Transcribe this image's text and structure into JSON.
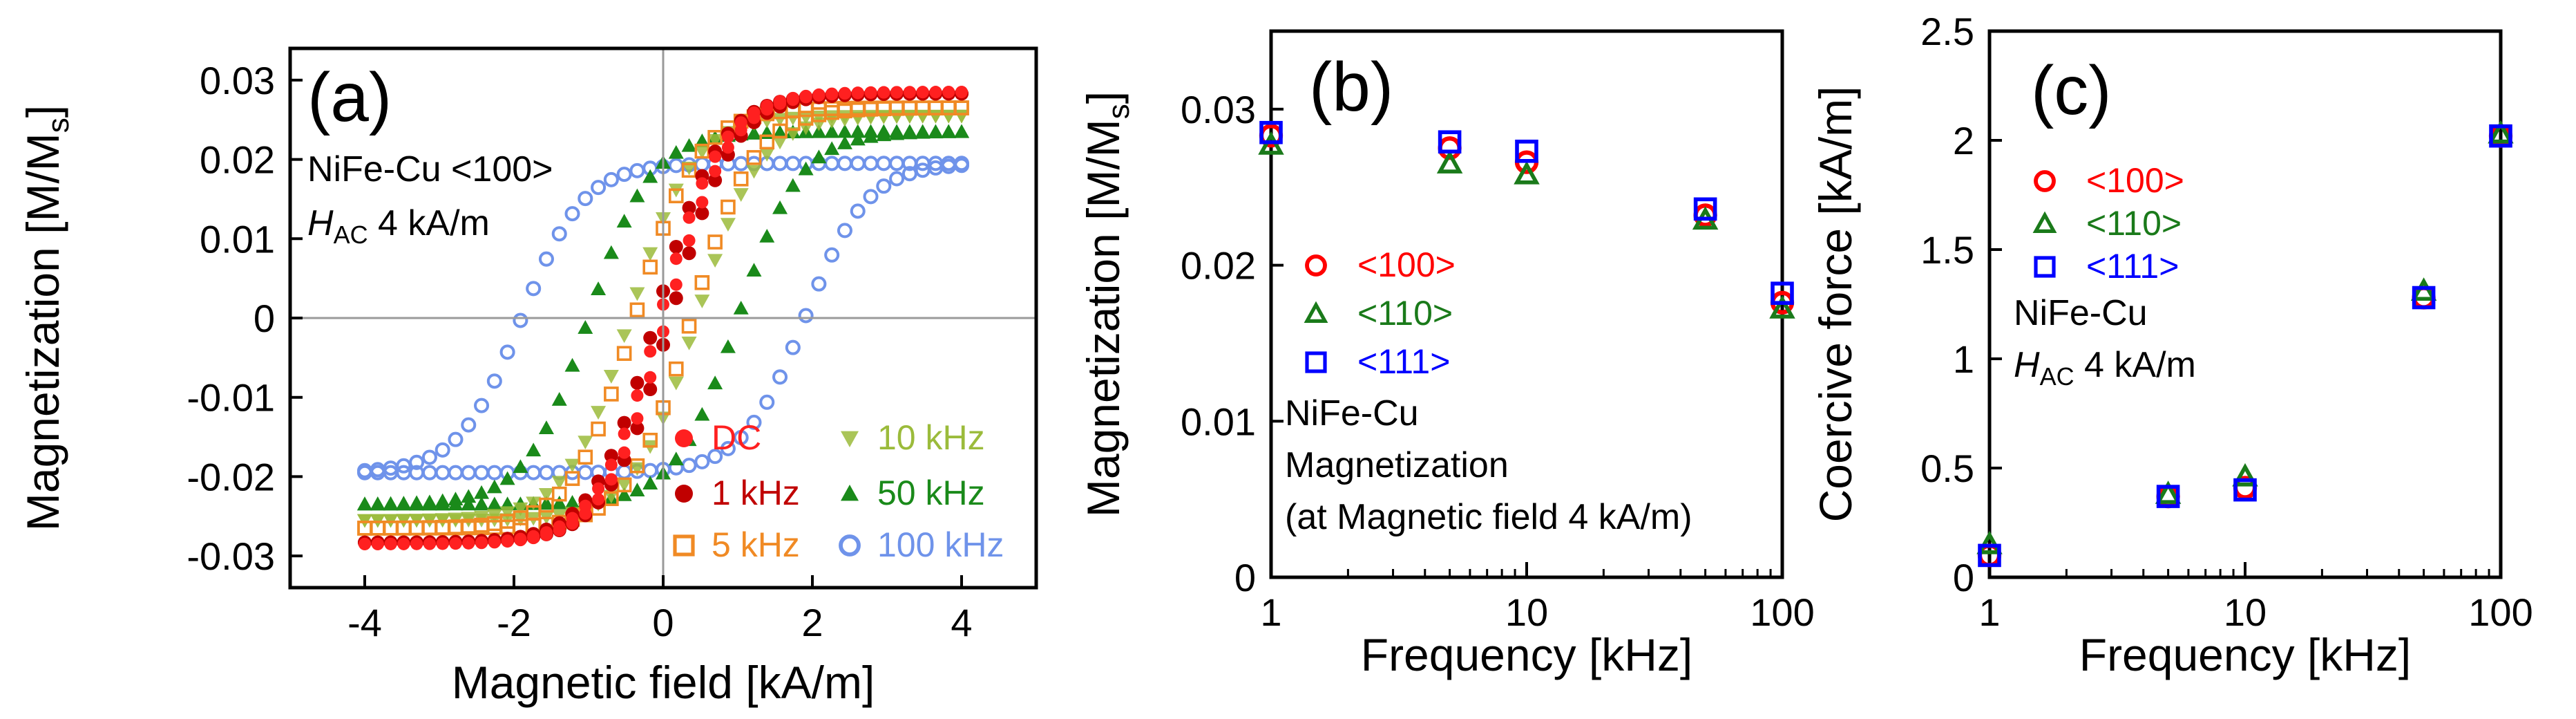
{
  "colors": {
    "dc": "#ff2020",
    "khz1": "#c00000",
    "khz5": "#f08a24",
    "khz10": "#9bbb3b",
    "khz50": "#1a8a1a",
    "khz100": "#6f93ea",
    "d100": "#ff0000",
    "d110": "#1a7a1a",
    "d111": "#0000ff",
    "refline": "#9a9a9a"
  },
  "chart_data": [
    {
      "id": "a",
      "type": "scatter",
      "panel_label": "(a)",
      "xlabel": "Magnetic field [kA/m]",
      "ylabel_main": "Magnetization [M/M",
      "ylabel_sub": "s",
      "ylabel_close": "]",
      "xlim": [
        -5,
        5
      ],
      "ylim": [
        -0.034,
        0.034
      ],
      "xticks": [
        -4,
        -2,
        0,
        2,
        4
      ],
      "xtick_labels": [
        "-4",
        "-2",
        "0",
        "2",
        "4"
      ],
      "yticks": [
        -0.03,
        -0.02,
        -0.01,
        0,
        0.01,
        0.02,
        0.03
      ],
      "ytick_labels": [
        "-0.03",
        "-0.02",
        "-0.01",
        "0",
        "0.01",
        "0.02",
        "0.03"
      ],
      "annotation_line1": "NiFe-Cu <100>",
      "annotation_h": "H",
      "annotation_sub": "AC",
      "annotation_rest": " 4 kA/m",
      "series": [
        {
          "name": "100 kHz",
          "color_key": "khz100",
          "marker": "circle-open",
          "amplitude": 0.0195,
          "coercive": 1.9,
          "label": "100 kHz"
        },
        {
          "name": "50 kHz",
          "color_key": "khz50",
          "marker": "triangle-up",
          "amplitude": 0.0235,
          "coercive": 1.0,
          "label": "50 kHz"
        },
        {
          "name": "10 kHz",
          "color_key": "khz10",
          "marker": "triangle-down",
          "amplitude": 0.0255,
          "coercive": 0.45,
          "label": "10 kHz"
        },
        {
          "name": "5 kHz",
          "color_key": "khz5",
          "marker": "square-open",
          "amplitude": 0.0265,
          "coercive": 0.38,
          "label": "5 kHz"
        },
        {
          "name": "1 kHz",
          "color_key": "khz1",
          "marker": "circle-filled",
          "amplitude": 0.0283,
          "coercive": 0.1,
          "label": "1 kHz"
        },
        {
          "name": "DC",
          "color_key": "dc",
          "marker": "dot",
          "amplitude": 0.0285,
          "coercive": 0.05,
          "label": "DC"
        }
      ],
      "legend_order": [
        "DC",
        "1 kHz",
        "5 kHz",
        "10 kHz",
        "50 kHz",
        "100 kHz"
      ]
    },
    {
      "id": "b",
      "type": "scatter",
      "panel_label": "(b)",
      "xlabel": "Frequency [kHz]",
      "ylabel_main": "Magnetization [M/M",
      "ylabel_sub": "s",
      "ylabel_close": "]",
      "xscale": "log",
      "xlim": [
        1,
        100
      ],
      "ylim": [
        0,
        0.035
      ],
      "xticks": [
        1,
        10,
        100
      ],
      "xtick_labels": [
        "1",
        "10",
        "100"
      ],
      "yticks": [
        0,
        0.01,
        0.02,
        0.03
      ],
      "ytick_labels": [
        "0",
        "0.01",
        "0.02",
        "0.03"
      ],
      "x": [
        1,
        5,
        10,
        50,
        100
      ],
      "series": [
        {
          "name": "<100>",
          "color_key": "d100",
          "marker": "circle-open",
          "values": [
            0.0283,
            0.0275,
            0.0266,
            0.0232,
            0.0176
          ]
        },
        {
          "name": "<110>",
          "color_key": "d110",
          "marker": "triangle-open",
          "values": [
            0.0277,
            0.0265,
            0.0258,
            0.0229,
            0.0172
          ]
        },
        {
          "name": "<111>",
          "color_key": "d111",
          "marker": "square-open",
          "values": [
            0.0285,
            0.0279,
            0.0273,
            0.0236,
            0.0182
          ]
        }
      ],
      "annotation_lines": [
        "NiFe-Cu",
        "Magnetization",
        "(at Magnetic field 4 kA/m)"
      ]
    },
    {
      "id": "c",
      "type": "scatter",
      "panel_label": "(c)",
      "xlabel": "Frequency [kHz]",
      "ylabel": "Coercive force [kA/m]",
      "xscale": "log",
      "xlim": [
        1,
        100
      ],
      "ylim": [
        0,
        2.5
      ],
      "xticks": [
        1,
        10,
        100
      ],
      "xtick_labels": [
        "1",
        "10",
        "100"
      ],
      "yticks": [
        0,
        0.5,
        1,
        1.5,
        2,
        2.5
      ],
      "ytick_labels": [
        "0",
        "0.5",
        "1",
        "1.5",
        "2",
        "2.5"
      ],
      "x": [
        1,
        5,
        10,
        50,
        100
      ],
      "series": [
        {
          "name": "<100>",
          "color_key": "d100",
          "marker": "circle-open",
          "values": [
            0.1,
            0.37,
            0.41,
            1.28,
            2.02
          ]
        },
        {
          "name": "<110>",
          "color_key": "d110",
          "marker": "triangle-open",
          "values": [
            0.15,
            0.38,
            0.46,
            1.31,
            2.03
          ]
        },
        {
          "name": "<111>",
          "color_key": "d111",
          "marker": "square-open",
          "values": [
            0.1,
            0.37,
            0.4,
            1.28,
            2.02
          ]
        }
      ],
      "annotation_line1": "NiFe-Cu",
      "annotation_h": "H",
      "annotation_sub": "AC",
      "annotation_rest": " 4 kA/m"
    }
  ]
}
